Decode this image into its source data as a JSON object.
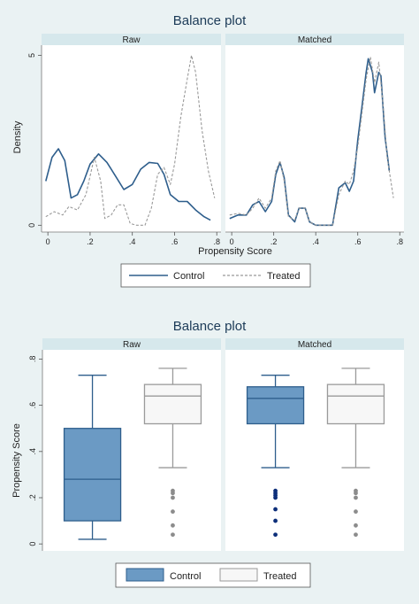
{
  "chart_data": [
    {
      "type": "line",
      "title": "Balance plot",
      "xlabel": "Propensity Score",
      "ylabel": "Density",
      "xlim": [
        -0.03,
        0.82
      ],
      "ylim": [
        -0.2,
        5.3
      ],
      "xticks": [
        {
          "v": 0,
          "label": "0"
        },
        {
          "v": 0.2,
          "label": ".2"
        },
        {
          "v": 0.4,
          "label": ".4"
        },
        {
          "v": 0.6,
          "label": ".6"
        },
        {
          "v": 0.8,
          "label": ".8"
        }
      ],
      "yticks": [
        {
          "v": 0,
          "label": "0"
        },
        {
          "v": 5,
          "label": "5"
        }
      ],
      "grid": false,
      "legend_position": "bottom",
      "legend": [
        "Control",
        "Treated"
      ],
      "panels": [
        {
          "label": "Raw",
          "series": [
            {
              "name": "Control",
              "color": "#2e5e8c",
              "dash": false,
              "points": [
                [
                  -0.01,
                  1.3
                ],
                [
                  0.02,
                  2.0
                ],
                [
                  0.05,
                  2.25
                ],
                [
                  0.08,
                  1.9
                ],
                [
                  0.11,
                  0.8
                ],
                [
                  0.14,
                  0.9
                ],
                [
                  0.17,
                  1.3
                ],
                [
                  0.2,
                  1.8
                ],
                [
                  0.24,
                  2.1
                ],
                [
                  0.28,
                  1.85
                ],
                [
                  0.32,
                  1.45
                ],
                [
                  0.36,
                  1.05
                ],
                [
                  0.4,
                  1.2
                ],
                [
                  0.44,
                  1.65
                ],
                [
                  0.48,
                  1.85
                ],
                [
                  0.52,
                  1.82
                ],
                [
                  0.55,
                  1.5
                ],
                [
                  0.58,
                  0.9
                ],
                [
                  0.62,
                  0.7
                ],
                [
                  0.66,
                  0.7
                ],
                [
                  0.7,
                  0.45
                ],
                [
                  0.74,
                  0.25
                ],
                [
                  0.77,
                  0.15
                ]
              ]
            },
            {
              "name": "Treated",
              "color": "#999999",
              "dash": true,
              "points": [
                [
                  -0.01,
                  0.25
                ],
                [
                  0.03,
                  0.4
                ],
                [
                  0.07,
                  0.3
                ],
                [
                  0.1,
                  0.55
                ],
                [
                  0.14,
                  0.45
                ],
                [
                  0.18,
                  0.9
                ],
                [
                  0.22,
                  2.0
                ],
                [
                  0.25,
                  1.3
                ],
                [
                  0.27,
                  0.2
                ],
                [
                  0.3,
                  0.3
                ],
                [
                  0.33,
                  0.6
                ],
                [
                  0.36,
                  0.6
                ],
                [
                  0.39,
                  0.05
                ],
                [
                  0.42,
                  0.0
                ],
                [
                  0.46,
                  0.0
                ],
                [
                  0.49,
                  0.5
                ],
                [
                  0.52,
                  1.5
                ],
                [
                  0.55,
                  1.7
                ],
                [
                  0.58,
                  1.2
                ],
                [
                  0.6,
                  1.8
                ],
                [
                  0.63,
                  3.2
                ],
                [
                  0.66,
                  4.3
                ],
                [
                  0.68,
                  5.0
                ],
                [
                  0.7,
                  4.5
                ],
                [
                  0.73,
                  2.8
                ],
                [
                  0.76,
                  1.6
                ],
                [
                  0.79,
                  0.8
                ]
              ]
            }
          ]
        },
        {
          "label": "Matched",
          "series": [
            {
              "name": "Control",
              "color": "#2e5e8c",
              "dash": false,
              "points": [
                [
                  -0.01,
                  0.2
                ],
                [
                  0.03,
                  0.3
                ],
                [
                  0.07,
                  0.3
                ],
                [
                  0.1,
                  0.6
                ],
                [
                  0.13,
                  0.7
                ],
                [
                  0.16,
                  0.4
                ],
                [
                  0.19,
                  0.7
                ],
                [
                  0.21,
                  1.5
                ],
                [
                  0.23,
                  1.85
                ],
                [
                  0.25,
                  1.4
                ],
                [
                  0.27,
                  0.3
                ],
                [
                  0.3,
                  0.1
                ],
                [
                  0.32,
                  0.5
                ],
                [
                  0.35,
                  0.5
                ],
                [
                  0.37,
                  0.1
                ],
                [
                  0.4,
                  0.0
                ],
                [
                  0.48,
                  0.0
                ],
                [
                  0.51,
                  1.1
                ],
                [
                  0.54,
                  1.25
                ],
                [
                  0.56,
                  1.0
                ],
                [
                  0.58,
                  1.3
                ],
                [
                  0.6,
                  2.5
                ],
                [
                  0.62,
                  3.5
                ],
                [
                  0.64,
                  4.5
                ],
                [
                  0.65,
                  4.9
                ],
                [
                  0.67,
                  4.5
                ],
                [
                  0.68,
                  3.9
                ],
                [
                  0.7,
                  4.5
                ],
                [
                  0.71,
                  4.4
                ],
                [
                  0.73,
                  2.6
                ],
                [
                  0.75,
                  1.6
                ]
              ]
            },
            {
              "name": "Treated",
              "color": "#999999",
              "dash": true,
              "points": [
                [
                  -0.01,
                  0.3
                ],
                [
                  0.03,
                  0.35
                ],
                [
                  0.07,
                  0.3
                ],
                [
                  0.1,
                  0.5
                ],
                [
                  0.13,
                  0.8
                ],
                [
                  0.16,
                  0.5
                ],
                [
                  0.19,
                  0.8
                ],
                [
                  0.21,
                  1.6
                ],
                [
                  0.23,
                  1.9
                ],
                [
                  0.25,
                  1.3
                ],
                [
                  0.27,
                  0.25
                ],
                [
                  0.3,
                  0.15
                ],
                [
                  0.32,
                  0.5
                ],
                [
                  0.35,
                  0.5
                ],
                [
                  0.37,
                  0.1
                ],
                [
                  0.4,
                  0.0
                ],
                [
                  0.48,
                  0.0
                ],
                [
                  0.51,
                  0.9
                ],
                [
                  0.54,
                  1.3
                ],
                [
                  0.56,
                  1.2
                ],
                [
                  0.58,
                  1.6
                ],
                [
                  0.6,
                  2.3
                ],
                [
                  0.62,
                  3.3
                ],
                [
                  0.64,
                  4.3
                ],
                [
                  0.66,
                  4.95
                ],
                [
                  0.68,
                  4.2
                ],
                [
                  0.7,
                  4.8
                ],
                [
                  0.72,
                  3.6
                ],
                [
                  0.74,
                  2.0
                ],
                [
                  0.77,
                  0.8
                ]
              ]
            }
          ]
        }
      ]
    },
    {
      "type": "box",
      "title": "Balance plot",
      "ylabel": "Propensity Score",
      "ylim": [
        -0.03,
        0.84
      ],
      "yticks": [
        {
          "v": 0,
          "label": "0"
        },
        {
          "v": 0.2,
          "label": ".2"
        },
        {
          "v": 0.4,
          "label": ".4"
        },
        {
          "v": 0.6,
          "label": ".6"
        },
        {
          "v": 0.8,
          "label": ".8"
        }
      ],
      "grid": false,
      "legend_position": "bottom",
      "legend": [
        "Control",
        "Treated"
      ],
      "colors": {
        "control_fill": "#6b9ac4",
        "control_line": "#2e5e8c",
        "treated_fill": "#f7f7f7",
        "treated_line": "#9a9a9a",
        "control_outlier": "#0d2f7a",
        "treated_outlier": "#8c8c8c"
      },
      "panels": [
        {
          "label": "Raw",
          "boxes": [
            {
              "name": "Control",
              "whisker_low": 0.02,
              "q1": 0.1,
              "median": 0.28,
              "q3": 0.5,
              "whisker_high": 0.73,
              "outliers": []
            },
            {
              "name": "Treated",
              "whisker_low": 0.33,
              "q1": 0.52,
              "median": 0.64,
              "q3": 0.69,
              "whisker_high": 0.76,
              "outliers": [
                0.23,
                0.22,
                0.2,
                0.14,
                0.08,
                0.04
              ]
            }
          ]
        },
        {
          "label": "Matched",
          "boxes": [
            {
              "name": "Control",
              "whisker_low": 0.33,
              "q1": 0.52,
              "median": 0.63,
              "q3": 0.68,
              "whisker_high": 0.73,
              "outliers": [
                0.23,
                0.22,
                0.21,
                0.2,
                0.15,
                0.1,
                0.04
              ]
            },
            {
              "name": "Treated",
              "whisker_low": 0.33,
              "q1": 0.52,
              "median": 0.64,
              "q3": 0.69,
              "whisker_high": 0.76,
              "outliers": [
                0.23,
                0.22,
                0.2,
                0.14,
                0.08,
                0.04
              ]
            }
          ]
        }
      ]
    }
  ]
}
